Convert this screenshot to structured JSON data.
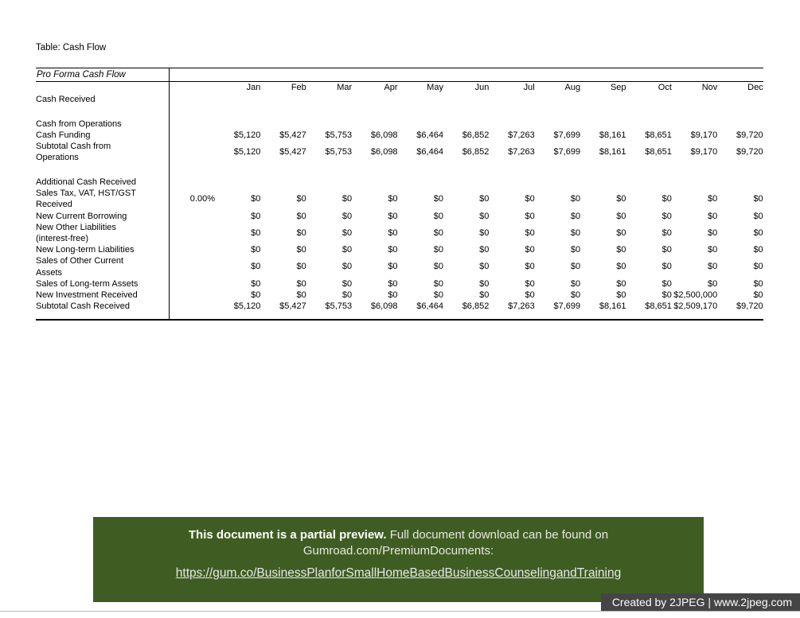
{
  "page": {
    "title": "Table: Cash Flow"
  },
  "table": {
    "title": "Pro Forma Cash Flow",
    "months": [
      "Jan",
      "Feb",
      "Mar",
      "Apr",
      "May",
      "Jun",
      "Jul",
      "Aug",
      "Sep",
      "Oct",
      "Nov",
      "Dec"
    ],
    "rows": [
      {
        "kind": "section",
        "label": "Cash Received"
      },
      {
        "kind": "spacer"
      },
      {
        "kind": "section",
        "label": "Cash from Operations"
      },
      {
        "kind": "data",
        "label": "Cash Funding",
        "rate": "",
        "values": [
          "$5,120",
          "$5,427",
          "$5,753",
          "$6,098",
          "$6,464",
          "$6,852",
          "$7,263",
          "$7,699",
          "$8,161",
          "$8,651",
          "$9,170",
          "$9,720"
        ]
      },
      {
        "kind": "data",
        "label": "Subtotal Cash from Operations",
        "rate": "",
        "values": [
          "$5,120",
          "$5,427",
          "$5,753",
          "$6,098",
          "$6,464",
          "$6,852",
          "$7,263",
          "$7,699",
          "$8,161",
          "$8,651",
          "$9,170",
          "$9,720"
        ]
      },
      {
        "kind": "spacer"
      },
      {
        "kind": "section",
        "label": "Additional Cash Received"
      },
      {
        "kind": "data",
        "label": "Sales Tax, VAT, HST/GST Received",
        "rate": "0.00%",
        "values": [
          "$0",
          "$0",
          "$0",
          "$0",
          "$0",
          "$0",
          "$0",
          "$0",
          "$0",
          "$0",
          "$0",
          "$0"
        ]
      },
      {
        "kind": "data",
        "label": "New Current Borrowing",
        "rate": "",
        "values": [
          "$0",
          "$0",
          "$0",
          "$0",
          "$0",
          "$0",
          "$0",
          "$0",
          "$0",
          "$0",
          "$0",
          "$0"
        ]
      },
      {
        "kind": "data",
        "label": "New Other Liabilities (interest-free)",
        "rate": "",
        "values": [
          "$0",
          "$0",
          "$0",
          "$0",
          "$0",
          "$0",
          "$0",
          "$0",
          "$0",
          "$0",
          "$0",
          "$0"
        ]
      },
      {
        "kind": "data",
        "label": "New Long-term Liabilities",
        "rate": "",
        "values": [
          "$0",
          "$0",
          "$0",
          "$0",
          "$0",
          "$0",
          "$0",
          "$0",
          "$0",
          "$0",
          "$0",
          "$0"
        ]
      },
      {
        "kind": "data",
        "label": "Sales of Other Current Assets",
        "rate": "",
        "values": [
          "$0",
          "$0",
          "$0",
          "$0",
          "$0",
          "$0",
          "$0",
          "$0",
          "$0",
          "$0",
          "$0",
          "$0"
        ]
      },
      {
        "kind": "data",
        "label": "Sales of Long-term Assets",
        "rate": "",
        "values": [
          "$0",
          "$0",
          "$0",
          "$0",
          "$0",
          "$0",
          "$0",
          "$0",
          "$0",
          "$0",
          "$0",
          "$0"
        ]
      },
      {
        "kind": "data",
        "label": "New Investment Received",
        "rate": "",
        "values": [
          "$0",
          "$0",
          "$0",
          "$0",
          "$0",
          "$0",
          "$0",
          "$0",
          "$0",
          "$0",
          "$2,500,000",
          "$0"
        ]
      },
      {
        "kind": "data",
        "label": "Subtotal Cash Received",
        "rate": "",
        "values": [
          "$5,120",
          "$5,427",
          "$5,753",
          "$6,098",
          "$6,464",
          "$6,852",
          "$7,263",
          "$7,699",
          "$8,161",
          "$8,651",
          "$2,509,170",
          "$9,720"
        ]
      }
    ]
  },
  "banner": {
    "bold": "This document is a partial preview.",
    "rest": "Full document download can be found on",
    "line2": "Gumroad.com/PremiumDocuments:",
    "link": "https://gum.co/BusinessPlanforSmallHomeBasedBusinessCounselingandTraining"
  },
  "watermark": {
    "text": "Created by 2JPEG | www.2jpeg.com"
  },
  "colors": {
    "banner_bg": "#3f5d23",
    "watermark_bg": "#454545",
    "text": "#000000"
  }
}
